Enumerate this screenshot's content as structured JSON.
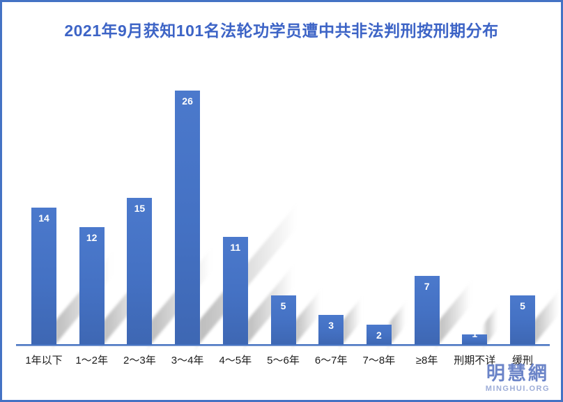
{
  "title": "2021年9月获知101名法轮功学员遭中共非法判刑按刑期分布",
  "chart_data": {
    "type": "bar",
    "title": "2021年9月获知101名法轮功学员遭中共非法判刑按刑期分布",
    "categories": [
      "1年以下",
      "1～2年",
      "2～3年",
      "3～4年",
      "4～5年",
      "5～6年",
      "6～7年",
      "7～8年",
      "≥8年",
      "刑期不详",
      "缓刑"
    ],
    "values": [
      14,
      12,
      15,
      26,
      11,
      5,
      3,
      2,
      7,
      1,
      5
    ],
    "total": 101,
    "xlabel": "",
    "ylabel": "",
    "ylim": [
      0,
      26
    ],
    "grid": false,
    "legend": false,
    "data_labels": "inside-end-white",
    "bar_color": "#4472C4",
    "shadow_effect": "perspective-upper-right-gray"
  },
  "logo": {
    "chinese": "明慧網",
    "english": "MINGHUI.ORG"
  },
  "colors": {
    "accent": "#4472C4",
    "title_text": "#3D64C6",
    "border": "#4472C4",
    "value_label": "#ffffff",
    "axis_line": "#4673C2",
    "background": "#ffffff"
  }
}
